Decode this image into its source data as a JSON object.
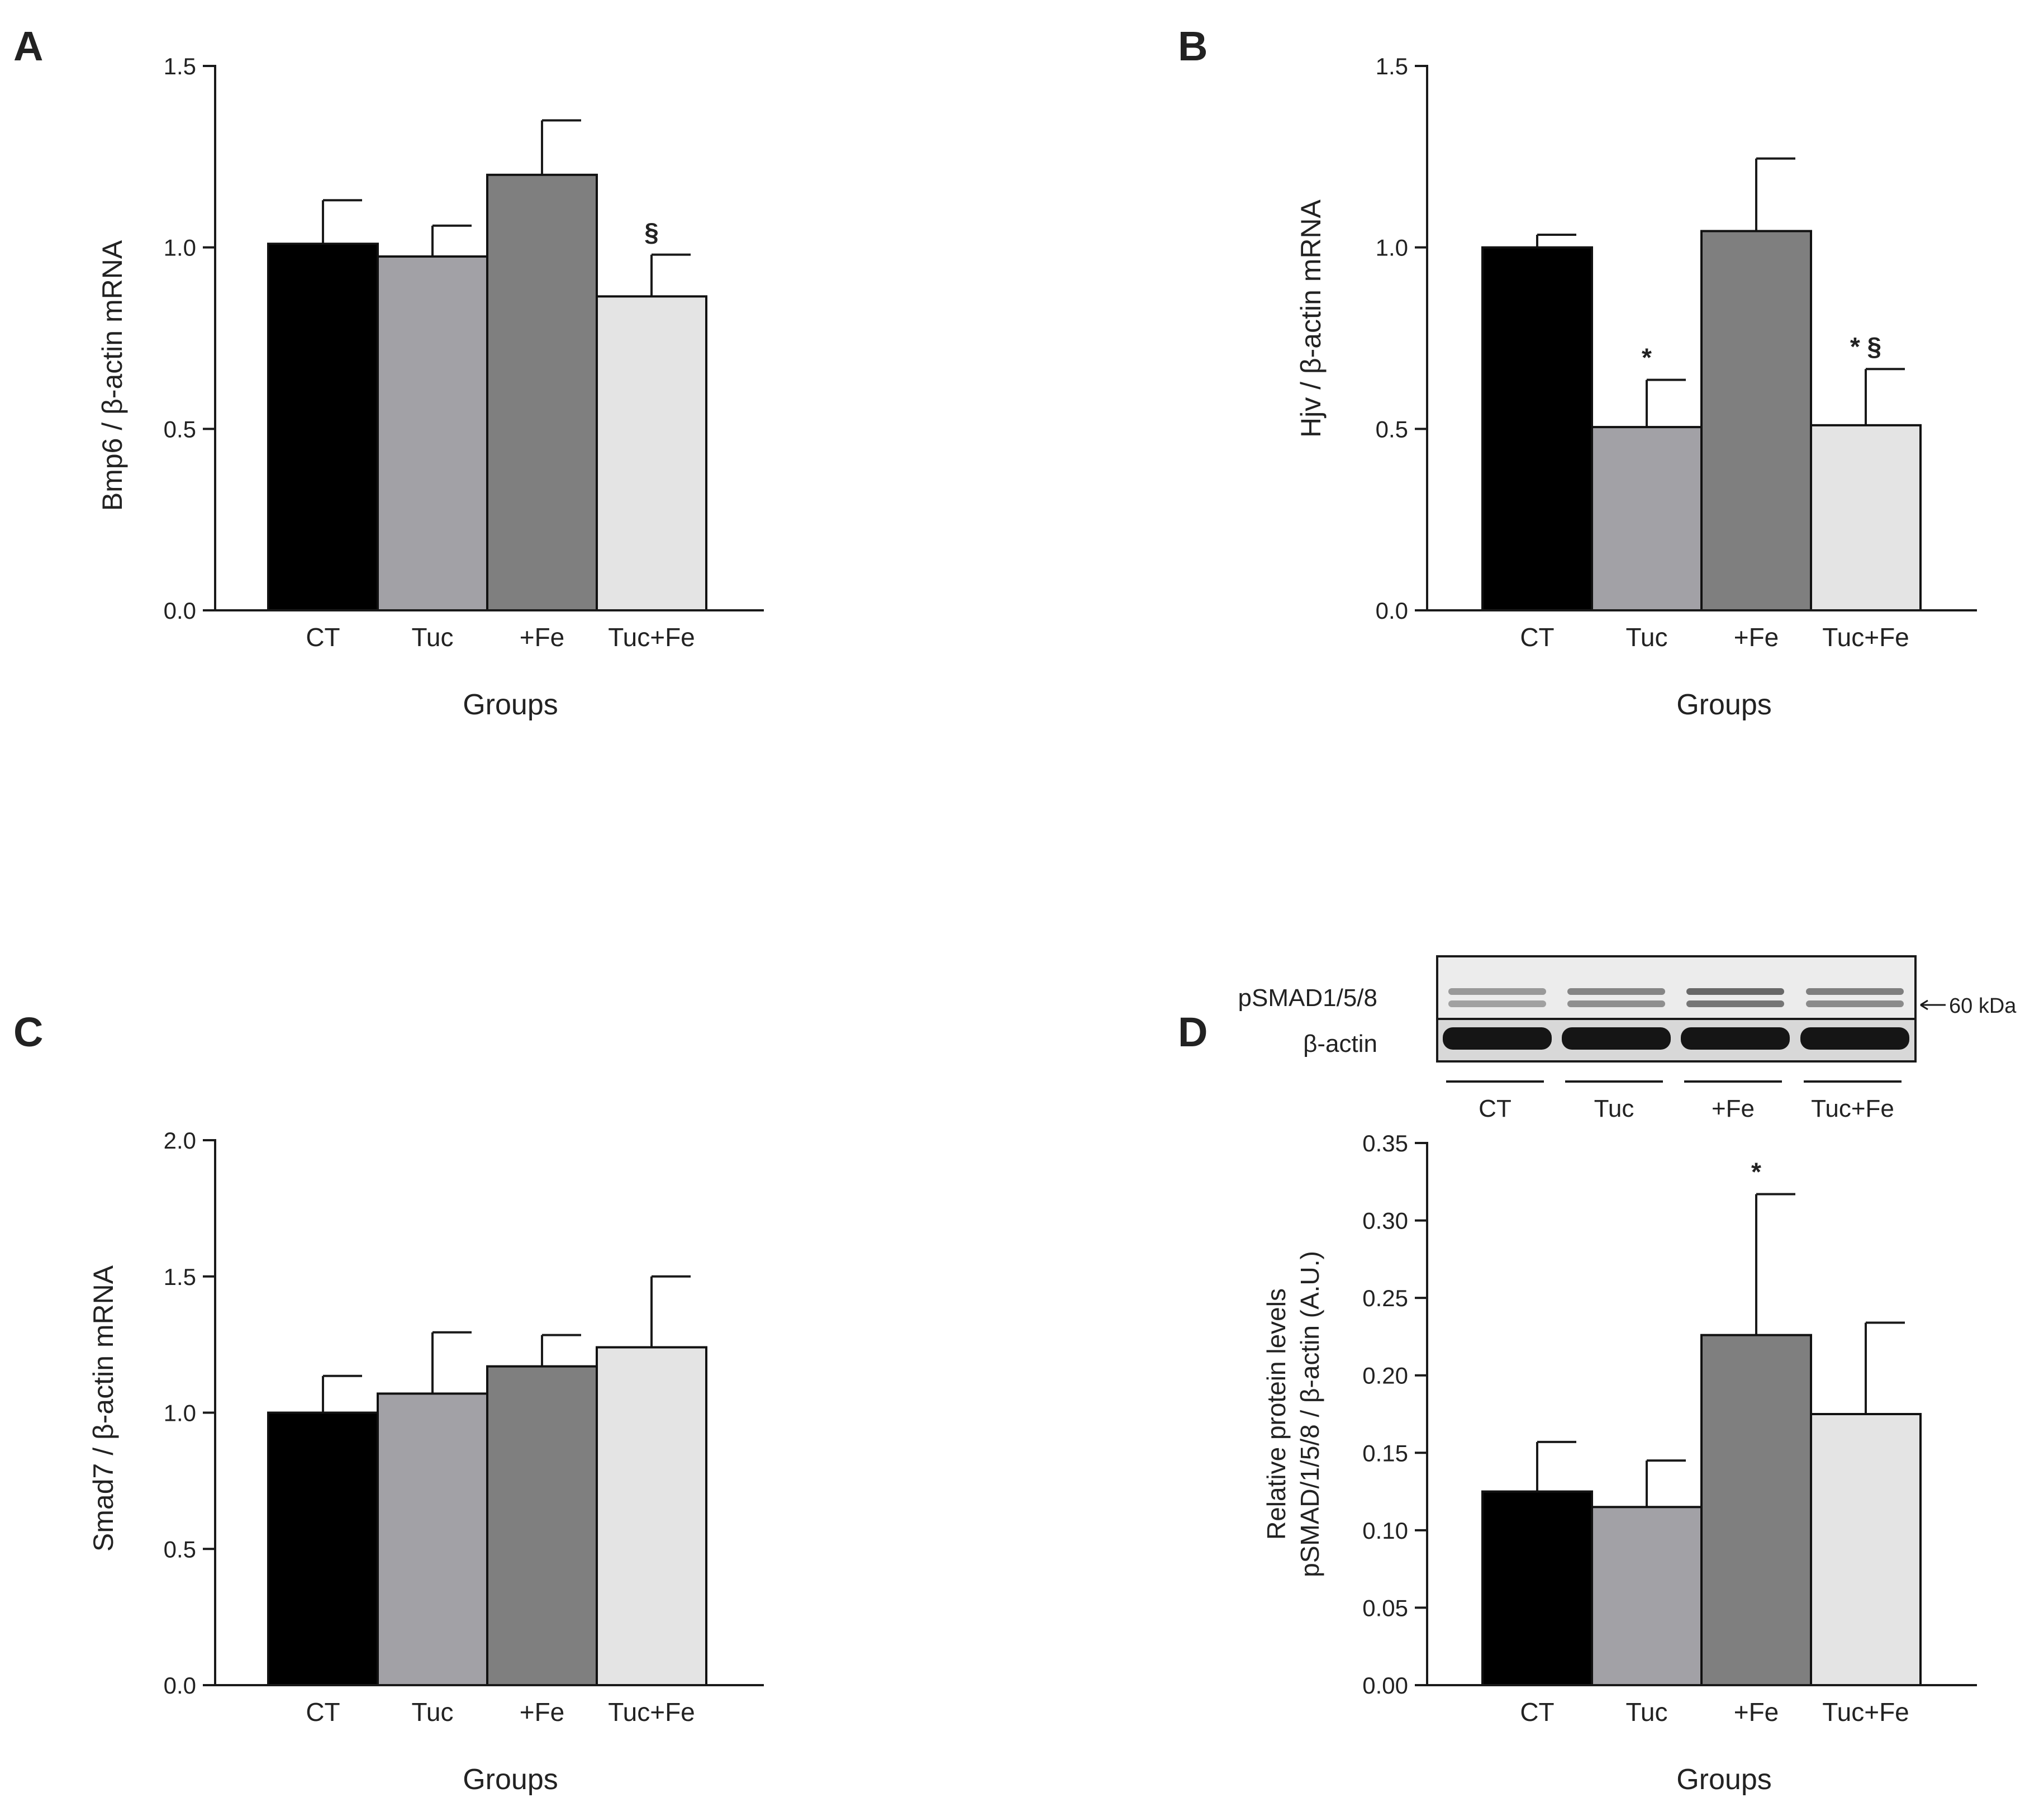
{
  "colors": {
    "CT": "#000000",
    "Tuc": "#a2a1a6",
    "+Fe": "#7f7f7f",
    "Tuc+Fe": "#e4e4e4",
    "axis": "#1a1a1a",
    "blot_bg": "#e9e9e9"
  },
  "chart_data": [
    {
      "panel_label": "A",
      "type": "bar",
      "title": "",
      "xlabel": "Groups",
      "ylabel": "Bmp6 / β-actin mRNA",
      "categories": [
        "CT",
        "Tuc",
        "+Fe",
        "Tuc+Fe"
      ],
      "values": [
        1.01,
        0.975,
        1.2,
        0.865
      ],
      "error": [
        0.12,
        0.085,
        0.15,
        0.115
      ],
      "annotations": [
        "",
        "",
        "",
        "§"
      ],
      "ylim": [
        0,
        1.5
      ],
      "yticks": [
        "0.0",
        "0.5",
        "1.0",
        "1.5"
      ],
      "ytick_values": [
        0,
        0.5,
        1.0,
        1.5
      ]
    },
    {
      "panel_label": "B",
      "type": "bar",
      "title": "",
      "xlabel": "Groups",
      "ylabel": "Hjv / β-actin mRNA",
      "categories": [
        "CT",
        "Tuc",
        "+Fe",
        "Tuc+Fe"
      ],
      "values": [
        1.0,
        0.505,
        1.045,
        0.51
      ],
      "error": [
        0.035,
        0.13,
        0.2,
        0.155
      ],
      "annotations": [
        "",
        "*",
        "",
        "* §"
      ],
      "ylim": [
        0,
        1.5
      ],
      "yticks": [
        "0.0",
        "0.5",
        "1.0",
        "1.5"
      ],
      "ytick_values": [
        0,
        0.5,
        1.0,
        1.5
      ]
    },
    {
      "panel_label": "C",
      "type": "bar",
      "title": "",
      "xlabel": "Groups",
      "ylabel": "Smad7 / β-actin mRNA",
      "categories": [
        "CT",
        "Tuc",
        "+Fe",
        "Tuc+Fe"
      ],
      "values": [
        1.0,
        1.07,
        1.17,
        1.24
      ],
      "error": [
        0.135,
        0.225,
        0.115,
        0.26
      ],
      "annotations": [
        "",
        "",
        "",
        ""
      ],
      "ylim": [
        0,
        2.0
      ],
      "yticks": [
        "0.0",
        "0.5",
        "1.0",
        "1.5",
        "2.0"
      ],
      "ytick_values": [
        0,
        0.5,
        1.0,
        1.5,
        2.0
      ]
    },
    {
      "panel_label": "D",
      "type": "bar",
      "title": "",
      "xlabel": "Groups",
      "ylabel_line1": "Relative protein levels",
      "ylabel_line2": "pSMAD/1/5/8  /  β-actin (A.U.)",
      "categories": [
        "CT",
        "Tuc",
        "+Fe",
        "Tuc+Fe"
      ],
      "values": [
        0.125,
        0.115,
        0.226,
        0.175
      ],
      "error": [
        0.032,
        0.03,
        0.091,
        0.059
      ],
      "annotations": [
        "",
        "",
        "*",
        ""
      ],
      "ylim": [
        0,
        0.35
      ],
      "yticks": [
        "0.00",
        "0.05",
        "0.10",
        "0.15",
        "0.20",
        "0.25",
        "0.30",
        "0.35"
      ],
      "ytick_values": [
        0,
        0.05,
        0.1,
        0.15,
        0.2,
        0.25,
        0.3,
        0.35
      ]
    }
  ],
  "blot": {
    "labels": [
      "pSMAD1/5/8",
      "β-actin"
    ],
    "marker": "60 kDa",
    "lanes": [
      "CT",
      "Tuc",
      "+Fe",
      "Tuc+Fe"
    ],
    "band_intensity": [
      0.35,
      0.55,
      0.8,
      0.6
    ]
  }
}
